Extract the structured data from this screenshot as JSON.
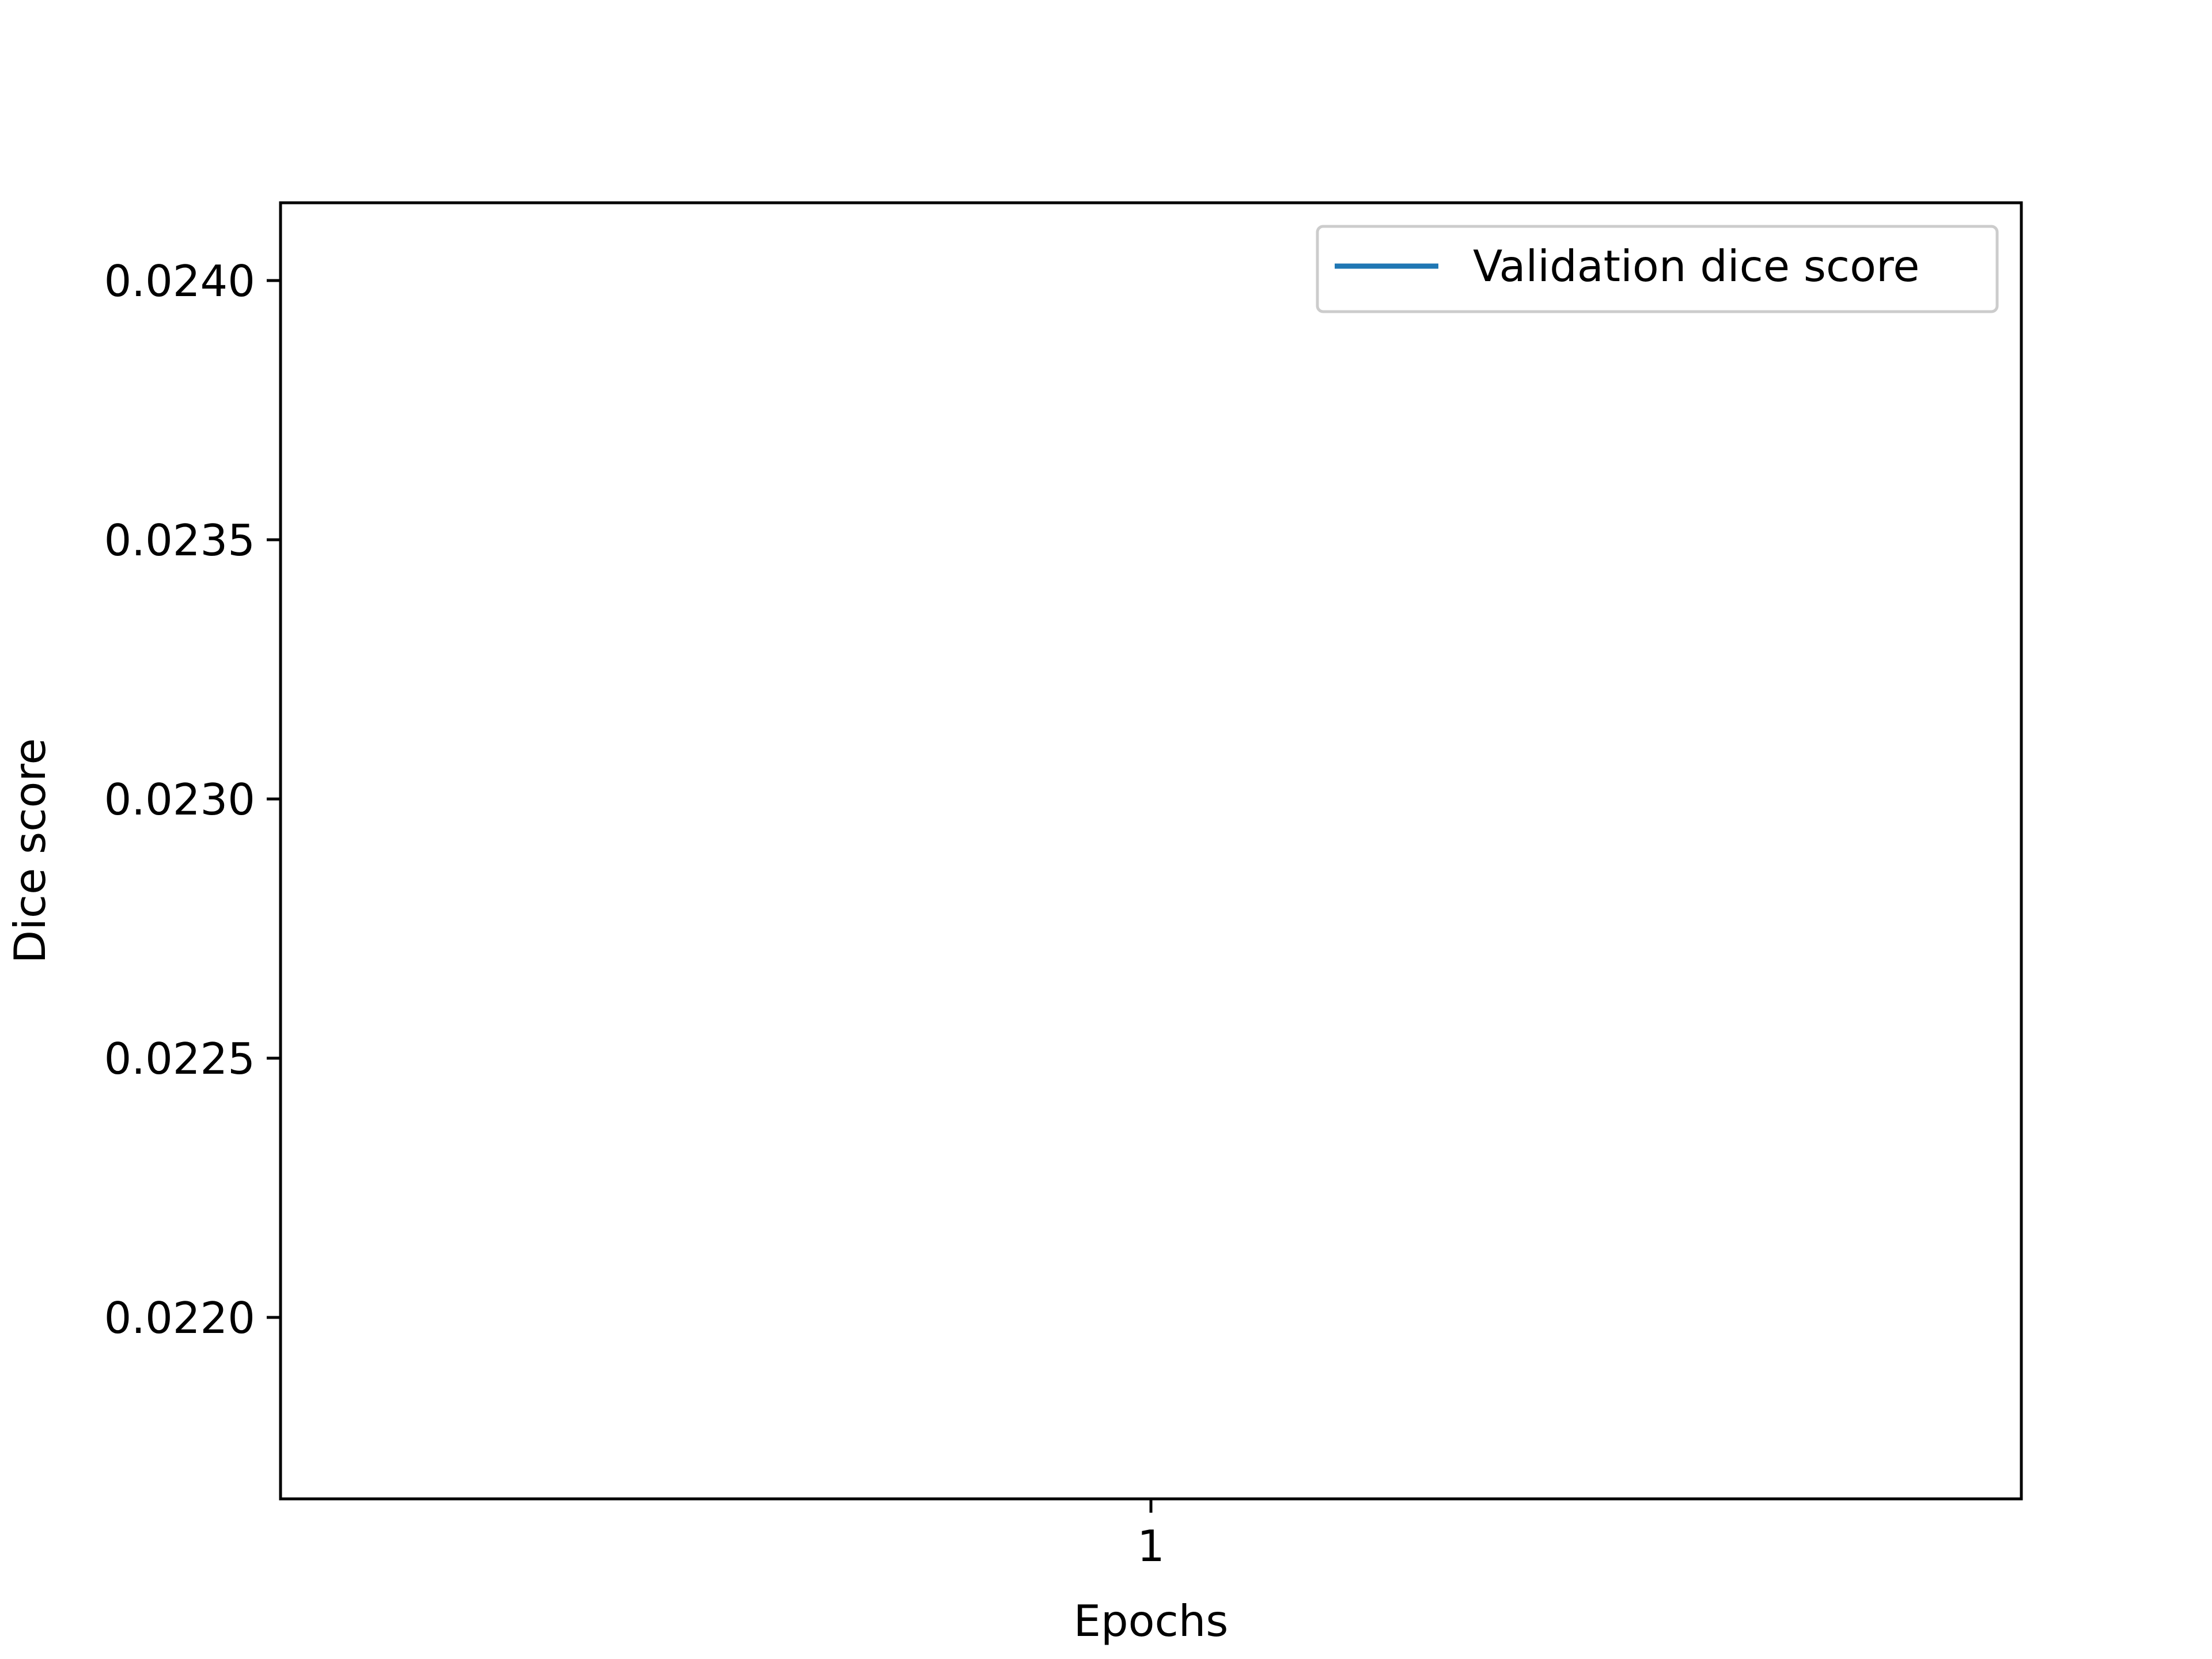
{
  "chart_data": {
    "type": "line",
    "title": "",
    "xlabel": "Epochs",
    "ylabel": "Dice score",
    "x": [
      1
    ],
    "xticks": [
      1
    ],
    "xtick_labels": [
      "1"
    ],
    "xlim": [
      0.0,
      2.0
    ],
    "yticks": [
      0.022,
      0.0225,
      0.023,
      0.0235,
      0.024
    ],
    "ytick_labels": [
      "0.0220",
      "0.0225",
      "0.0230",
      "0.0235",
      "0.0240"
    ],
    "ylim": [
      0.02165,
      0.02415
    ],
    "grid": false,
    "legend_position": "upper right",
    "series": [
      {
        "name": "Validation dice score",
        "color": "#1f77b4",
        "values": [
          null
        ]
      }
    ]
  }
}
